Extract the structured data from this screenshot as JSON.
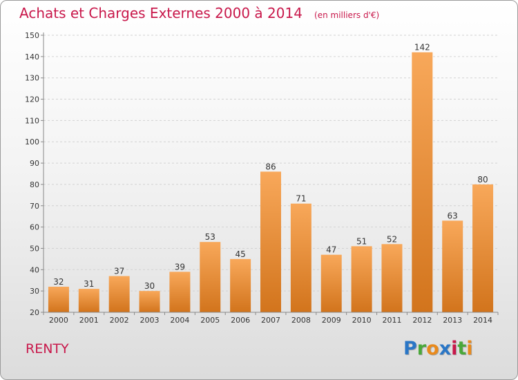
{
  "header": {
    "title": "Achats et Charges Externes 2000 à 2014",
    "subtitle": "(en milliers d'€)"
  },
  "footer": {
    "place": "RENTY",
    "logo_letters": [
      "P",
      "r",
      "o",
      "x",
      "i",
      "t",
      "i"
    ]
  },
  "chart_data": {
    "type": "bar",
    "title": "Achats et Charges Externes 2000 à 2014",
    "subtitle": "(en milliers d'€)",
    "categories": [
      "2000",
      "2001",
      "2002",
      "2003",
      "2004",
      "2005",
      "2006",
      "2007",
      "2008",
      "2009",
      "2010",
      "2011",
      "2012",
      "2013",
      "2014"
    ],
    "values": [
      32,
      31,
      37,
      30,
      39,
      53,
      45,
      86,
      71,
      47,
      51,
      52,
      142,
      63,
      80
    ],
    "ylim": [
      20,
      150
    ],
    "yticks": [
      20,
      30,
      40,
      50,
      60,
      70,
      80,
      90,
      100,
      110,
      120,
      130,
      140,
      150
    ],
    "grid": true,
    "colors": {
      "bar_light": "#f8a85a",
      "bar_dark": "#d2741c",
      "grid": "#d2d2d2",
      "axis": "#888888"
    }
  }
}
